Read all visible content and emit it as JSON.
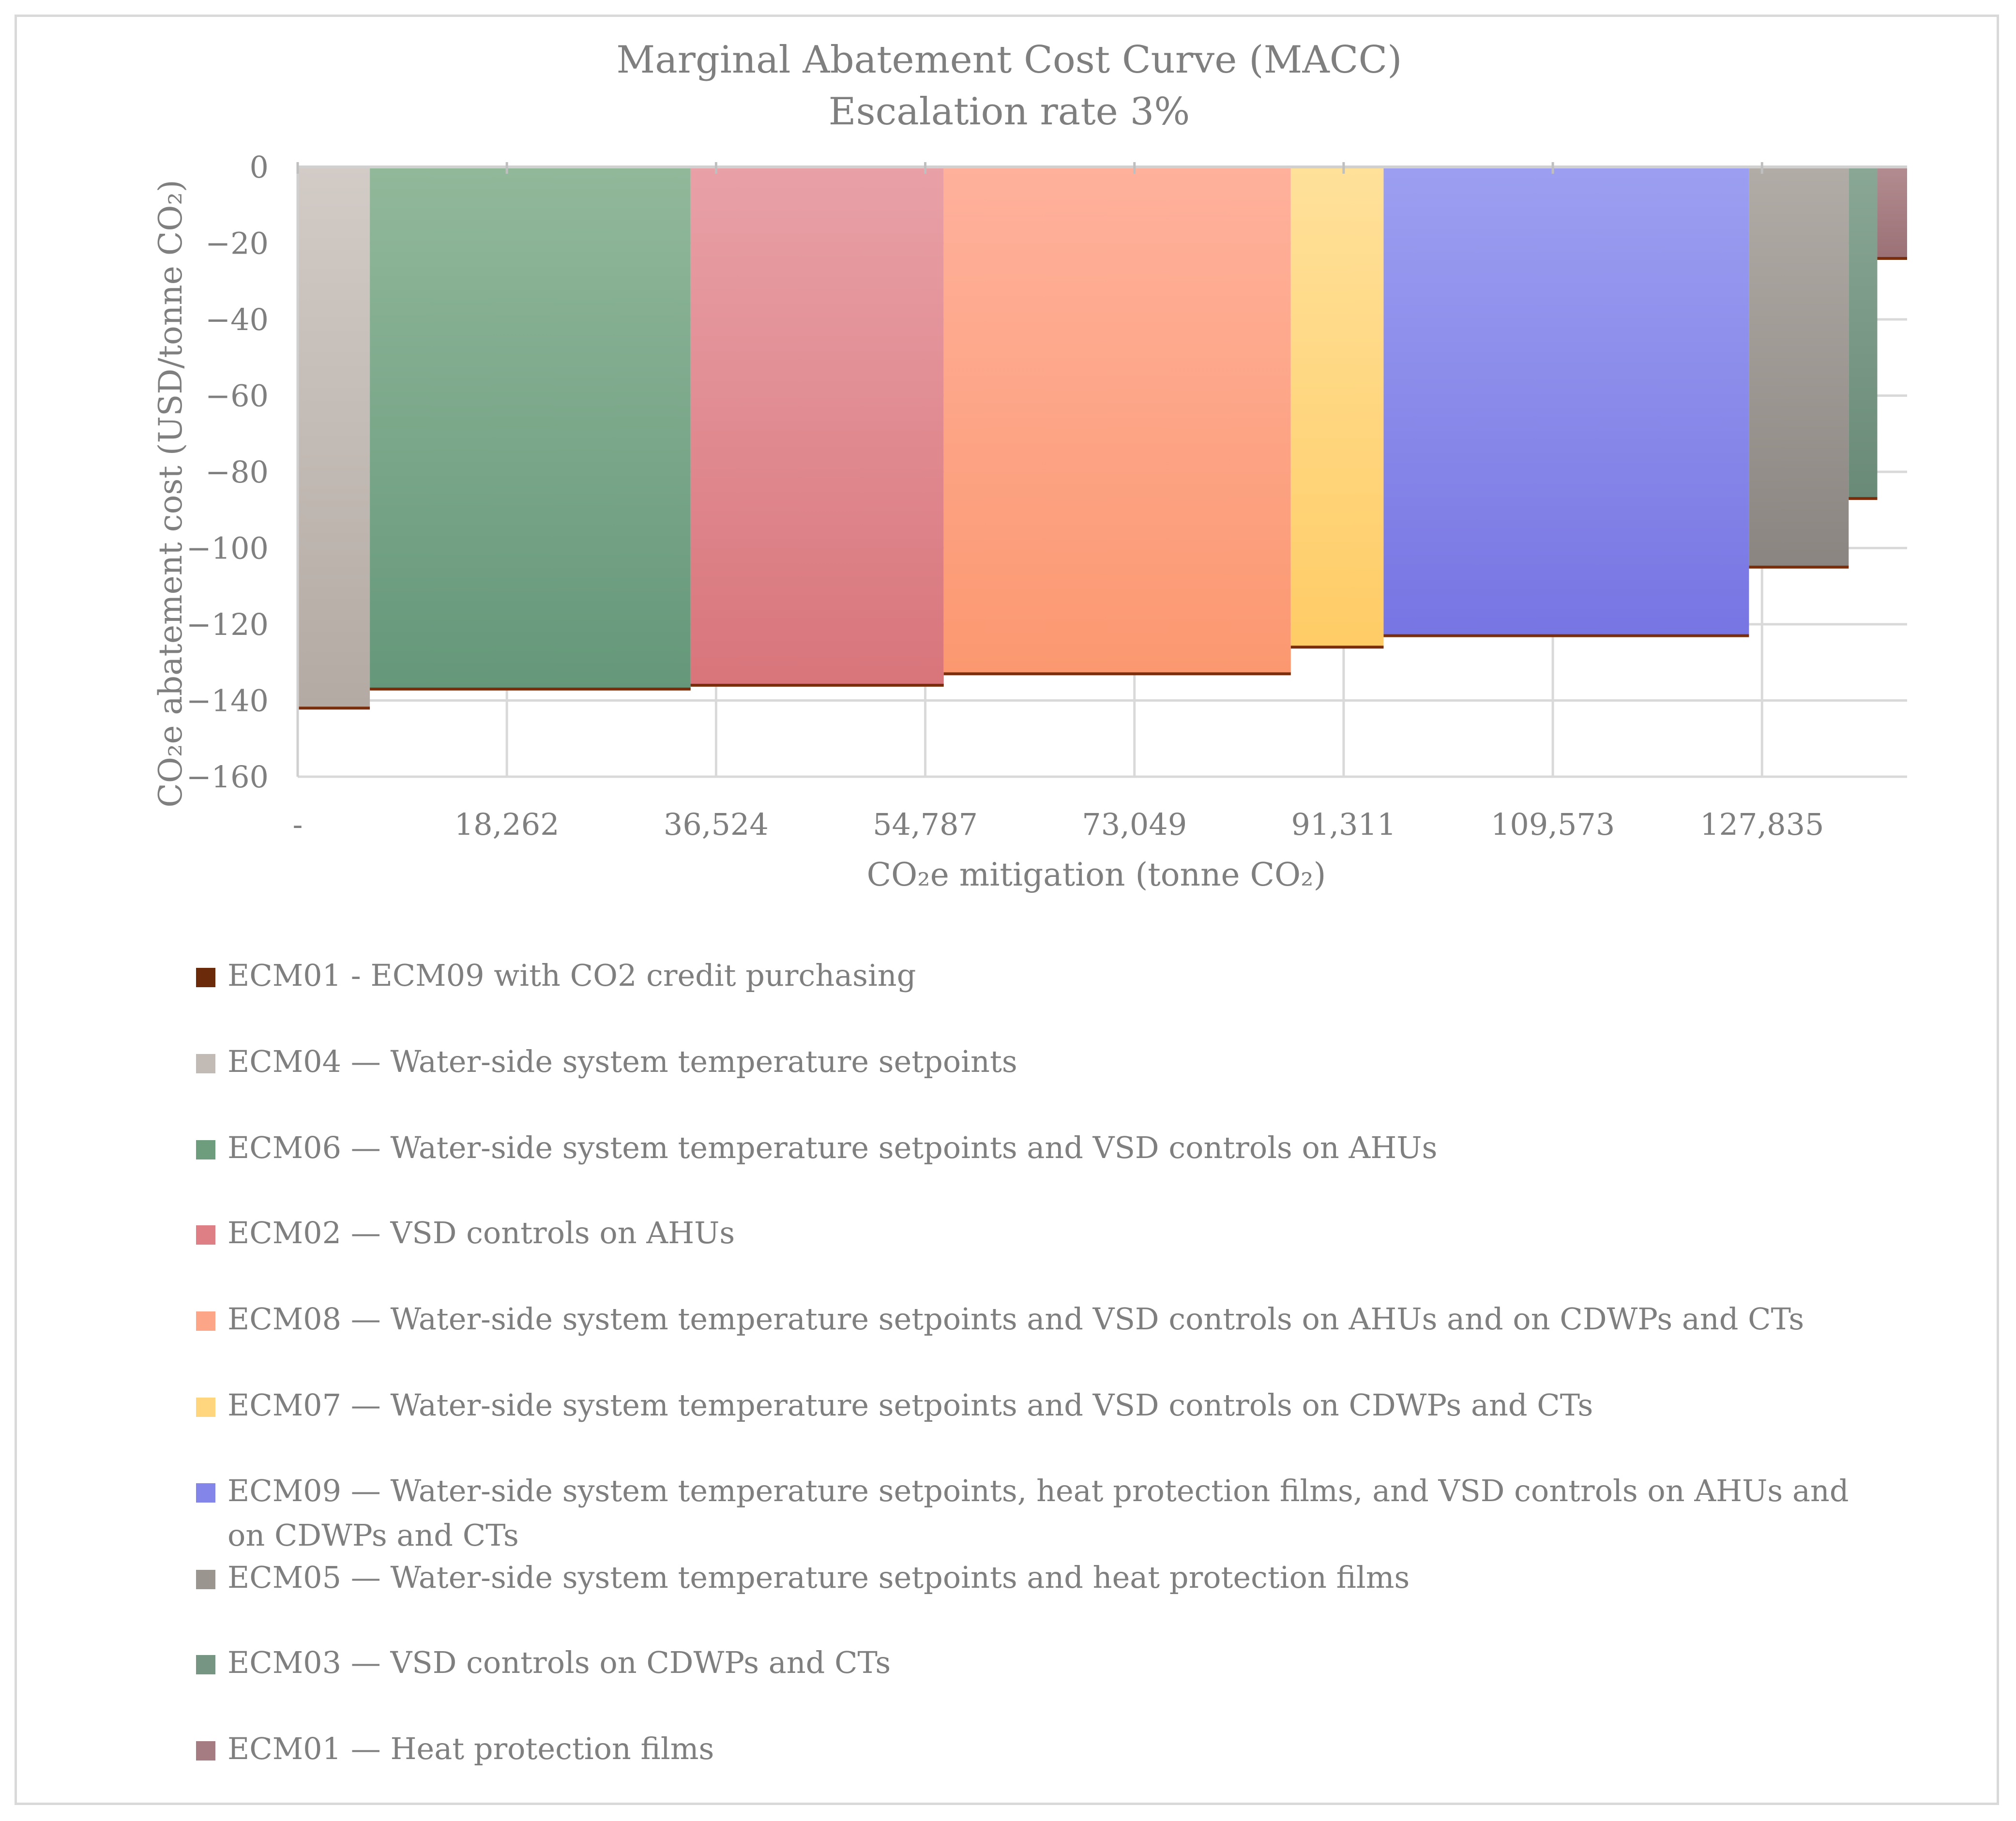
{
  "chart_data": {
    "type": "bar",
    "variant": "marginal-abatement-cost-curve",
    "title": "Marginal Abatement Cost Curve (MACC)",
    "subtitle": "Escalation rate 3%",
    "xlabel": "CO₂e mitigation (tonne CO₂)",
    "ylabel": "CO₂e abatement cost (USD/tonne CO₂)",
    "xlim": [
      0,
      140500
    ],
    "ylim": [
      -160,
      0
    ],
    "x_ticks": [
      {
        "value": 0,
        "label": "-"
      },
      {
        "value": 18262,
        "label": "18,262"
      },
      {
        "value": 36524,
        "label": "36,524"
      },
      {
        "value": 54787,
        "label": "54,787"
      },
      {
        "value": 73049,
        "label": "73,049"
      },
      {
        "value": 91311,
        "label": "91,311"
      },
      {
        "value": 109573,
        "label": "109,573"
      },
      {
        "value": 127835,
        "label": "127,835"
      }
    ],
    "y_ticks": [
      {
        "value": 0,
        "label": "0"
      },
      {
        "value": -20,
        "label": "−20"
      },
      {
        "value": -40,
        "label": "−40"
      },
      {
        "value": -60,
        "label": "−60"
      },
      {
        "value": -80,
        "label": "−80"
      },
      {
        "value": -100,
        "label": "−100"
      },
      {
        "value": -120,
        "label": "−120"
      },
      {
        "value": -140,
        "label": "−140"
      },
      {
        "value": -160,
        "label": "−160"
      }
    ],
    "grid": true,
    "legend_position": "bottom",
    "series": [
      {
        "name": "ECM04 — Water-side system temperature setpoints",
        "x_start": 0,
        "x_end": 6300,
        "value": -142,
        "color_top": "#d2cbc6",
        "color_bottom": "#b3aaa3"
      },
      {
        "name": "ECM06 — Water-side system temperature setpoints and VSD controls on AHUs",
        "x_start": 6300,
        "x_end": 34300,
        "value": -137,
        "color_top": "#92b89a",
        "color_bottom": "#65977a"
      },
      {
        "name": "ECM02 — VSD controls on AHUs",
        "x_start": 34300,
        "x_end": 56400,
        "value": -136,
        "color_top": "#e8a1a7",
        "color_bottom": "#d8757b"
      },
      {
        "name": "ECM08 — Water-side system temperature setpoints and VSD controls on AHUs and on CDWPs and CTs",
        "x_start": 56400,
        "x_end": 86700,
        "value": -133,
        "color_top": "#ffb19c",
        "color_bottom": "#fb9870"
      },
      {
        "name": "ECM07 — Water-side system temperature setpoints and VSD controls on CDWPs and CTs",
        "x_start": 86700,
        "x_end": 94800,
        "value": -126,
        "color_top": "#ffe19a",
        "color_bottom": "#ffcc66"
      },
      {
        "name": "ECM09 — Water-side system temperature setpoints, heat protection films, and VSD controls on AHUs and on CDWPs and CTs",
        "x_start": 94800,
        "x_end": 126700,
        "value": -123,
        "color_top": "#9c9ff1",
        "color_bottom": "#7775e3"
      },
      {
        "name": "ECM05 — Water-side system temperature setpoints and heat protection films",
        "x_start": 126700,
        "x_end": 135400,
        "value": -105,
        "color_top": "#b2aca7",
        "color_bottom": "#8b8581"
      },
      {
        "name": "ECM03 — VSD controls on CDWPs and CTs",
        "x_start": 135400,
        "x_end": 137900,
        "value": -87,
        "color_top": "#8aa795",
        "color_bottom": "#6a8a78"
      },
      {
        "name": "ECM01 — Heat protection films",
        "x_start": 137900,
        "x_end": 140500,
        "value": -24,
        "color_top": "#b28c90",
        "color_bottom": "#9b7176"
      }
    ],
    "step_line": {
      "name": "ECM01 - ECM09  with CO2 credit purchasing",
      "color": "#7a2e0c"
    }
  },
  "legend": {
    "items": [
      {
        "label": "ECM01 - ECM09  with CO2 credit purchasing",
        "color": "#6b2a0a"
      },
      {
        "label": "ECM04 — Water-side system temperature setpoints",
        "color": "#c2bab4"
      },
      {
        "label": "ECM06 — Water-side system temperature setpoints and VSD controls on AHUs",
        "color": "#6e9d7e"
      },
      {
        "label": "ECM02 — VSD controls on AHUs",
        "color": "#de7f86"
      },
      {
        "label": "ECM08 — Water-side system temperature setpoints and VSD controls on AHUs and on CDWPs and CTs",
        "color": "#fca587"
      },
      {
        "label": "ECM07 — Water-side system temperature setpoints and VSD controls on CDWPs and CTs",
        "color": "#ffd67e"
      },
      {
        "label": "ECM09 — Water-side system temperature setpoints, heat protection films, and VSD controls on AHUs and on CDWPs and CTs",
        "color": "#8485e8"
      },
      {
        "label": "ECM05 — Water-side system temperature setpoints and heat protection films",
        "color": "#9b9590"
      },
      {
        "label": "ECM03 — VSD controls on CDWPs and CTs",
        "color": "#769583"
      },
      {
        "label": "ECM01 — Heat protection films",
        "color": "#a57c81"
      }
    ]
  }
}
